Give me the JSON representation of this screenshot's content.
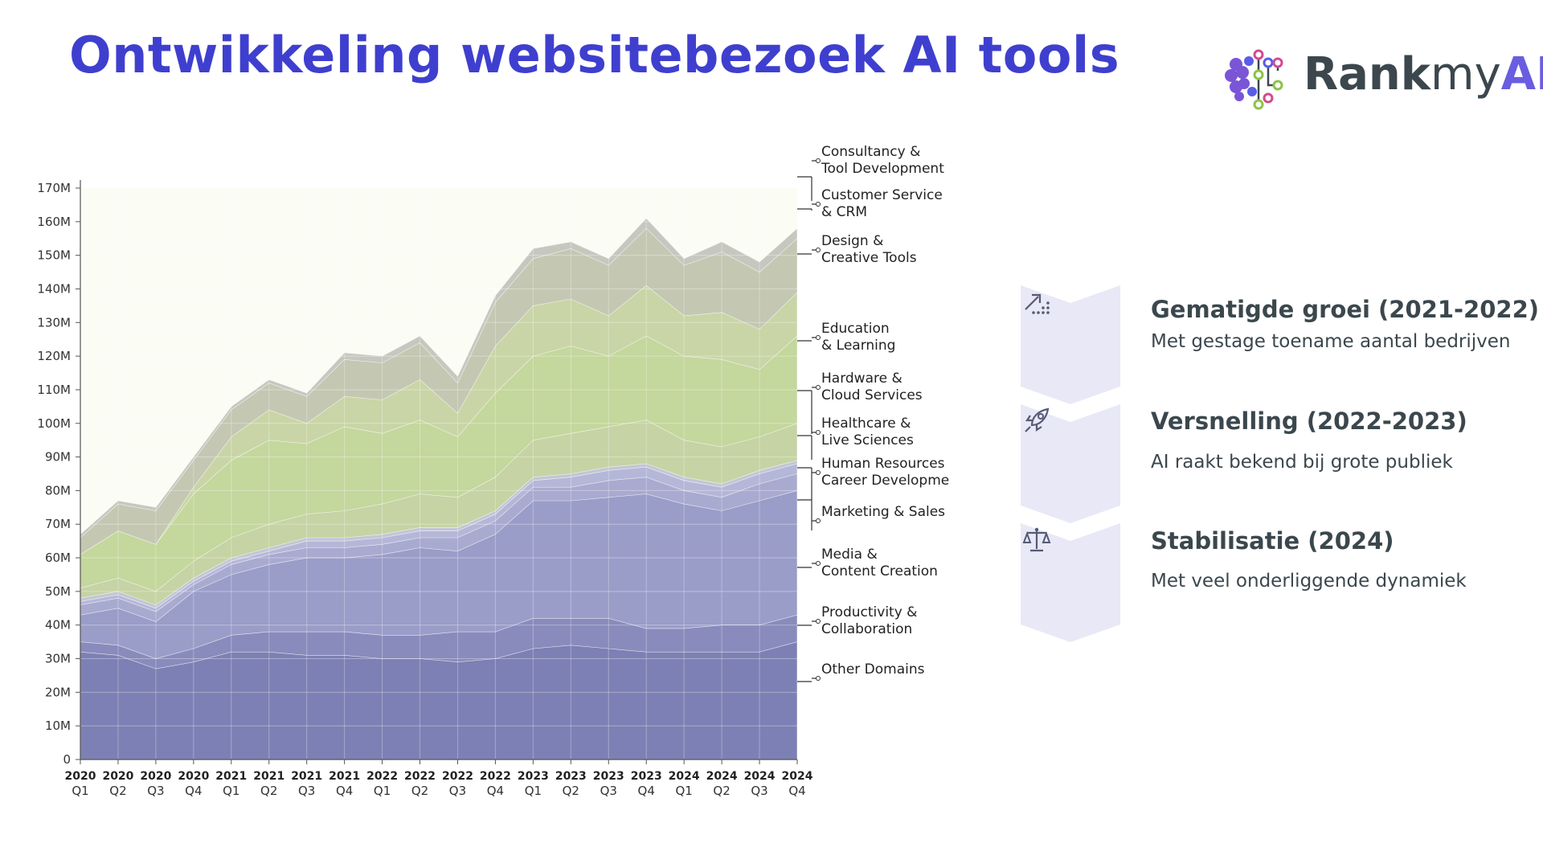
{
  "header": {
    "title": "Ontwikkeling websitebezoek AI tools"
  },
  "logo": {
    "part1": "Rank",
    "part2": "my",
    "part3": "AI",
    "icon": "brain-circuit-icon"
  },
  "chart_data": {
    "type": "area",
    "stacked": true,
    "title": "",
    "xlabel": "",
    "ylabel": "",
    "ylim": [
      0,
      170
    ],
    "y_ticks": [
      "0",
      "10M",
      "20M",
      "30M",
      "40M",
      "50M",
      "60M",
      "70M",
      "80M",
      "90M",
      "100M",
      "110M",
      "120M",
      "130M",
      "140M",
      "150M",
      "160M",
      "170M"
    ],
    "categories": [
      "2020 Q1",
      "2020 Q2",
      "2020 Q3",
      "2020 Q4",
      "2021 Q1",
      "2021 Q2",
      "2021 Q3",
      "2021 Q4",
      "2022 Q1",
      "2022 Q2",
      "2022 Q3",
      "2022 Q4",
      "2023 Q1",
      "2023 Q2",
      "2023 Q3",
      "2023 Q4",
      "2024 Q1",
      "2024 Q2",
      "2024 Q3",
      "2024 Q4"
    ],
    "x_years": [
      "2020",
      "2020",
      "2020",
      "2020",
      "2021",
      "2021",
      "2021",
      "2021",
      "2022",
      "2022",
      "2022",
      "2022",
      "2023",
      "2023",
      "2023",
      "2023",
      "2024",
      "2024",
      "2024",
      "2024"
    ],
    "x_quarters": [
      "Q1",
      "Q2",
      "Q3",
      "Q4",
      "Q1",
      "Q2",
      "Q3",
      "Q4",
      "Q1",
      "Q2",
      "Q3",
      "Q4",
      "Q1",
      "Q2",
      "Q3",
      "Q4",
      "Q1",
      "Q2",
      "Q3",
      "Q4"
    ],
    "series": [
      {
        "name": "Other Domains",
        "color": "#7d80b4",
        "values": [
          32,
          31,
          27,
          29,
          32,
          32,
          31,
          31,
          30,
          30,
          29,
          30,
          33,
          34,
          33,
          32,
          32,
          32,
          32,
          35
        ]
      },
      {
        "name": "Productivity & Collaboration",
        "color": "#898bbc",
        "values": [
          3,
          3,
          3,
          4,
          5,
          6,
          7,
          7,
          7,
          7,
          9,
          8,
          9,
          8,
          9,
          7,
          7,
          8,
          8,
          8
        ]
      },
      {
        "name": "Media & Content Creation",
        "color": "#9a9dc8",
        "values": [
          8,
          11,
          11,
          17,
          18,
          20,
          22,
          22,
          24,
          26,
          24,
          29,
          35,
          35,
          36,
          40,
          37,
          34,
          37,
          37
        ]
      },
      {
        "name": "Marketing & Sales",
        "color": "#a8aad0",
        "values": [
          3,
          3,
          3,
          2,
          3,
          3,
          3,
          3,
          3,
          3,
          4,
          4,
          4,
          4,
          5,
          5,
          4,
          4,
          5,
          5
        ]
      },
      {
        "name": "Human Resources Career Developme",
        "color": "#b5b7d8",
        "values": [
          1,
          1,
          1,
          1,
          1,
          1,
          2,
          2,
          2,
          2,
          2,
          2,
          2,
          3,
          3,
          3,
          3,
          3,
          3,
          3
        ]
      },
      {
        "name": "Healthcare & Live Sciences",
        "color": "#c2c6d5",
        "values": [
          1,
          1,
          1,
          1,
          1,
          1,
          1,
          1,
          1,
          1,
          1,
          1,
          1,
          1,
          1,
          1,
          1,
          1,
          1,
          1
        ]
      },
      {
        "name": "Hardware & Cloud Services",
        "color": "#c6d3a4",
        "values": [
          3,
          4,
          4,
          5,
          6,
          7,
          7,
          8,
          9,
          10,
          9,
          10,
          11,
          12,
          12,
          13,
          11,
          11,
          10,
          11
        ]
      },
      {
        "name": "Education & Learning",
        "color": "#c4d79d",
        "values": [
          10,
          14,
          14,
          20,
          23,
          25,
          21,
          25,
          21,
          22,
          18,
          25,
          25,
          26,
          21,
          25,
          25,
          26,
          20,
          26
        ]
      },
      {
        "name": "Design & Creative Tools",
        "color": "#c9d5a6",
        "values": [
          0,
          0,
          0,
          2,
          7,
          9,
          6,
          9,
          10,
          12,
          7,
          14,
          15,
          14,
          12,
          15,
          12,
          14,
          12,
          13
        ]
      },
      {
        "name": "Customer Service & CRM",
        "color": "#c4c7b2",
        "values": [
          5,
          8,
          10,
          8,
          8,
          8,
          8,
          11,
          11,
          11,
          9,
          13,
          14,
          15,
          15,
          17,
          15,
          18,
          17,
          16
        ]
      },
      {
        "name": "Consultancy & Tool Development",
        "color": "#c6c8c0",
        "values": [
          1,
          1,
          1,
          1,
          1,
          1,
          1,
          2,
          2,
          2,
          2,
          2,
          3,
          2,
          2,
          3,
          2,
          3,
          3,
          3
        ]
      }
    ],
    "legend_labels": [
      {
        "line1": "Consultancy &",
        "line2": "Tool Development"
      },
      {
        "line1": "Customer Service",
        "line2": "& CRM"
      },
      {
        "line1": "Design &",
        "line2": "Creative Tools"
      },
      {
        "line1": "Education",
        "line2": "& Learning"
      },
      {
        "line1": "Hardware &",
        "line2": "Cloud Services"
      },
      {
        "line1": "Healthcare &",
        "line2": "Live Sciences"
      },
      {
        "line1": "Human Resources",
        "line2": "Career Developme"
      },
      {
        "line1": "Marketing & Sales",
        "line2": ""
      },
      {
        "line1": "Media &",
        "line2": "Content Creation"
      },
      {
        "line1": "Productivity &",
        "line2": "Collaboration"
      },
      {
        "line1": "Other Domains",
        "line2": ""
      }
    ],
    "legend": "right",
    "grid": true
  },
  "steps": [
    {
      "title": "Gematigde groei (2021-2022)",
      "subtitle": "Met gestage toename aantal bedrijven",
      "icon": "growth-chart-icon"
    },
    {
      "title": "Versnelling (2022-2023)",
      "subtitle": "AI raakt bekend bij grote publiek",
      "icon": "rocket-icon"
    },
    {
      "title": "Stabilisatie (2024)",
      "subtitle": "Met veel onderliggende dynamiek",
      "icon": "scale-icon"
    }
  ],
  "colors": {
    "title": "#3f3fcf",
    "step_bg": "#e9e8f6",
    "text_dark": "#3b474d"
  }
}
